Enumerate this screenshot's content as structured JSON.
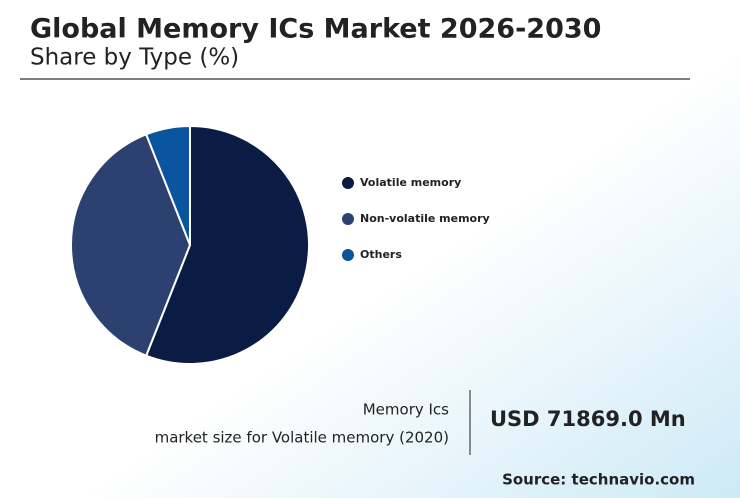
{
  "chart_data": {
    "type": "pie",
    "title": "Global Memory ICs Market 2026-2030",
    "subtitle": "Share by Type (%)",
    "categories": [
      "Volatile memory",
      "Non-volatile memory",
      "Others"
    ],
    "values": [
      56,
      38,
      6
    ],
    "colors": [
      "#0a1c44",
      "#2c4170",
      "#0a54a0"
    ],
    "stat_label": "Memory Ics",
    "stat_caption": "market size for Volatile memory (2020)",
    "stat_value": "USD 71869.0 Mn",
    "source": "Source: technavio.com"
  }
}
